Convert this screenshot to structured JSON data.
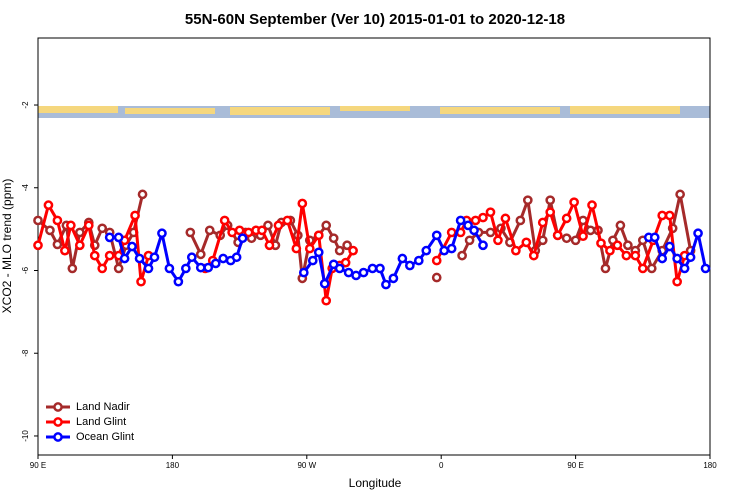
{
  "chart_data": {
    "type": "line",
    "title": "55N-60N September (Ver 10)   2015-01-01 to 2020-12-18",
    "x_label": "Longitude",
    "y_label": "XCO2 - MLO trend (ppm)",
    "xlim": [
      90,
      540
    ],
    "ylim": [
      -10.46,
      -0.38
    ],
    "xticks": [
      {
        "value": 90,
        "label": "90 E"
      },
      180,
      {
        "value": 270,
        "label": "90 W"
      },
      {
        "value": 360,
        "label": "0"
      },
      {
        "value": 450,
        "label": "90 E"
      },
      {
        "value": 540,
        "label": "180"
      }
    ],
    "yticks": [
      -2,
      -4,
      -6,
      -8,
      -10
    ],
    "legend": "bottom-left",
    "series": [
      {
        "name": "Land Nadir",
        "color": "#a52a2a",
        "x": [
          90,
          98,
          103,
          109,
          113,
          118,
          124,
          128,
          133,
          138,
          144,
          149,
          154,
          160,
          175,
          192,
          199,
          205,
          212,
          217,
          224,
          229,
          233,
          239,
          244,
          249,
          253,
          259,
          264,
          267,
          272,
          278,
          283,
          288,
          292,
          297,
          330,
          357,
          365,
          374,
          379,
          385,
          393,
          400,
          406,
          413,
          418,
          423,
          428,
          433,
          438,
          444,
          450,
          455,
          460,
          465,
          470,
          475,
          480,
          485,
          490,
          495,
          501,
          508,
          515,
          520,
          527
        ],
        "values": [
          -4.79,
          -5.03,
          -5.37,
          -4.91,
          -5.95,
          -5.08,
          -4.84,
          -5.39,
          -4.98,
          -5.08,
          -5.95,
          -5.39,
          -5.08,
          -4.16,
          null,
          -5.08,
          -5.61,
          -5.03,
          -5.15,
          -4.91,
          -5.32,
          -5.08,
          -5.22,
          -5.15,
          -4.91,
          -5.39,
          -4.84,
          -4.79,
          -5.15,
          -6.19,
          -5.27,
          -5.15,
          -4.91,
          -5.22,
          -5.52,
          -5.39,
          null,
          -6.17,
          null,
          -5.64,
          -5.27,
          -5.08,
          -5.08,
          -4.98,
          -5.32,
          -4.79,
          -4.3,
          -5.52,
          -5.27,
          -4.3,
          -5.15,
          -5.22,
          -5.27,
          -4.79,
          -5.03,
          -5.03,
          -5.95,
          -5.27,
          -4.91,
          -5.39,
          -5.52,
          -5.27,
          -5.95,
          -5.52,
          -4.98,
          -4.16,
          -5.52
        ]
      },
      {
        "name": "Land Glint",
        "color": "#ff0000",
        "x": [
          90,
          97,
          103,
          108,
          112,
          118,
          124,
          128,
          133,
          138,
          144,
          148,
          155,
          159,
          164,
          185,
          202,
          207,
          215,
          220,
          225,
          231,
          236,
          240,
          245,
          251,
          257,
          263,
          267,
          272,
          278,
          283,
          287,
          292,
          296,
          301,
          330,
          357,
          367,
          373,
          377,
          383,
          388,
          393,
          398,
          403,
          410,
          417,
          422,
          428,
          433,
          438,
          444,
          449,
          455,
          461,
          467,
          473,
          478,
          484,
          490,
          495,
          502,
          508,
          513,
          518,
          523
        ],
        "values": [
          -5.39,
          -4.42,
          -4.79,
          -5.52,
          -4.91,
          -5.39,
          -4.91,
          -5.64,
          -5.95,
          -5.64,
          -5.64,
          -5.27,
          -4.67,
          -6.27,
          -5.64,
          null,
          -5.95,
          -5.76,
          -4.79,
          -5.08,
          -5.03,
          -5.08,
          -5.03,
          -5.03,
          -5.39,
          -4.91,
          -4.79,
          -5.47,
          -4.38,
          -5.47,
          -5.15,
          -6.73,
          -5.95,
          -5.88,
          -5.81,
          -5.52,
          null,
          -5.76,
          -5.08,
          -5.08,
          -4.79,
          -4.79,
          -4.72,
          -4.59,
          -5.27,
          -4.74,
          -5.52,
          -5.32,
          -5.64,
          -4.84,
          -4.59,
          -5.15,
          -4.74,
          -4.35,
          -5.17,
          -4.42,
          -5.34,
          -5.52,
          -5.39,
          -5.64,
          -5.64,
          -5.95,
          -5.27,
          -4.67,
          -4.67,
          -6.27,
          -5.64
        ]
      },
      {
        "name": "Ocean Glint",
        "color": "#0000ff",
        "x": [
          138,
          144,
          148,
          153,
          158,
          164,
          168,
          173,
          178,
          184,
          189,
          193,
          199,
          204,
          209,
          214,
          219,
          223,
          227,
          248,
          268,
          274,
          278,
          282,
          288,
          292,
          298,
          303,
          308,
          314,
          319,
          323,
          328,
          334,
          339,
          345,
          350,
          357,
          362,
          367,
          373,
          378,
          382,
          388,
          440,
          499,
          503,
          508,
          513,
          518,
          523,
          527,
          532,
          537
        ],
        "values": [
          -5.2,
          -5.2,
          -5.71,
          -5.42,
          -5.71,
          -5.95,
          -5.68,
          -5.1,
          -5.95,
          -6.27,
          -5.95,
          -5.68,
          -5.93,
          -5.93,
          -5.83,
          -5.71,
          -5.76,
          -5.68,
          -5.22,
          null,
          -6.05,
          -5.76,
          -5.56,
          -6.32,
          -5.85,
          -5.95,
          -6.05,
          -6.12,
          -6.05,
          -5.95,
          -5.95,
          -6.34,
          -6.19,
          -5.71,
          -5.88,
          -5.76,
          -5.52,
          -5.15,
          -5.52,
          -5.47,
          -4.79,
          -4.91,
          -5.03,
          -5.39,
          null,
          -5.2,
          -5.2,
          -5.71,
          -5.42,
          -5.71,
          -5.95,
          -5.68,
          -5.1,
          -5.95
        ]
      }
    ]
  }
}
